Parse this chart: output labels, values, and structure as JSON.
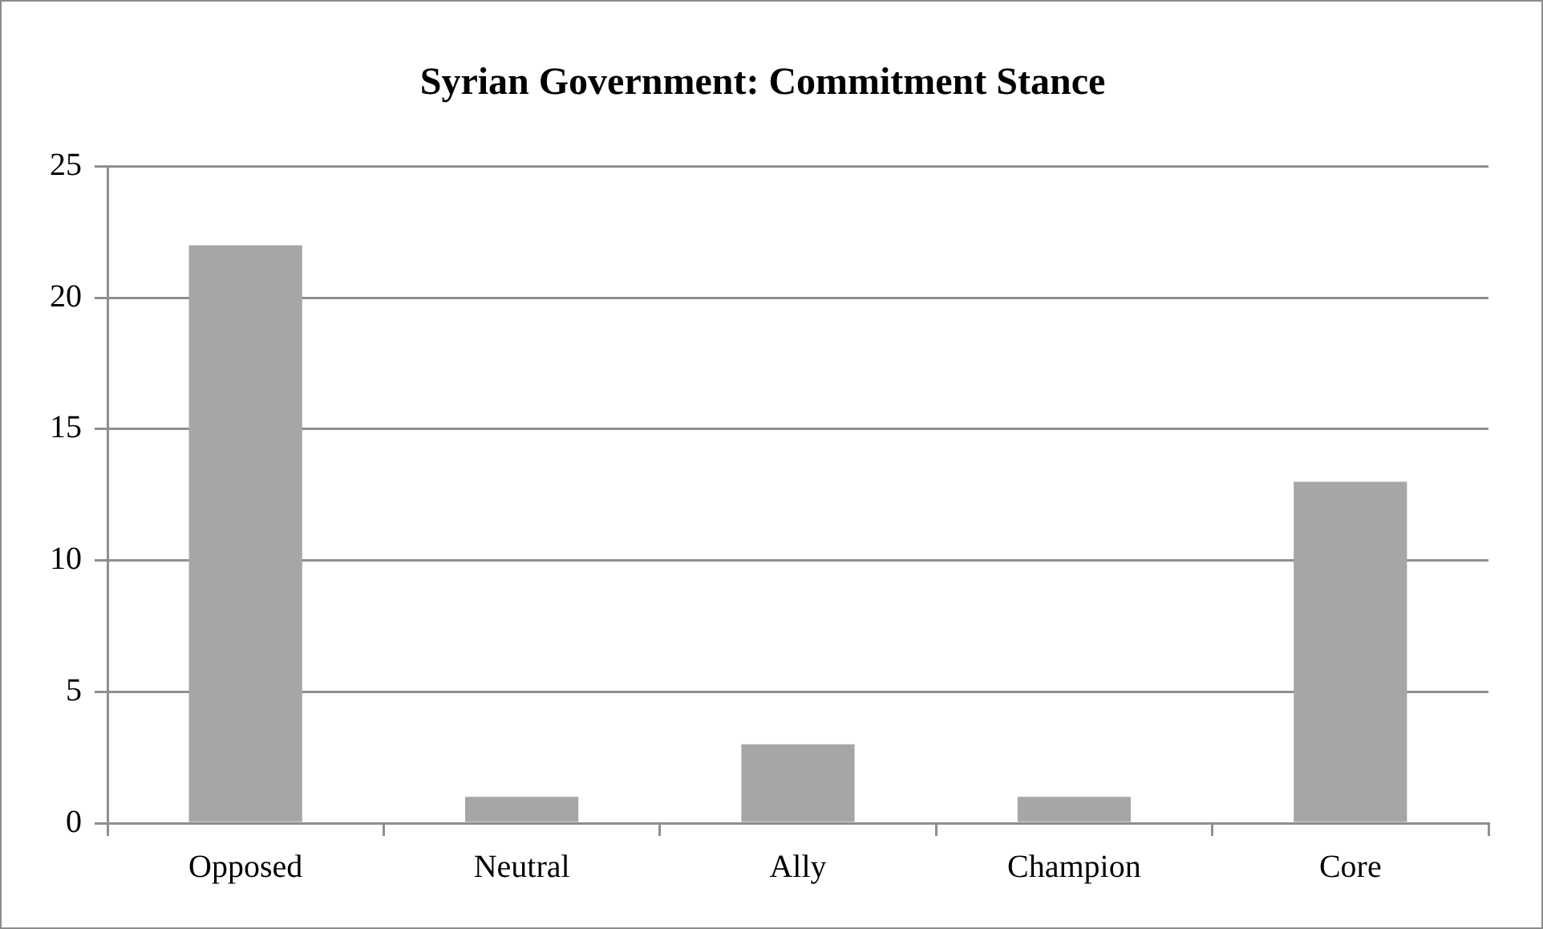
{
  "chart_data": {
    "type": "bar",
    "title": "Syrian Government: Commitment Stance",
    "categories": [
      "Opposed",
      "Neutral",
      "Ally",
      "Champion",
      "Core"
    ],
    "values": [
      22,
      1,
      3,
      1,
      13
    ],
    "color": "#a6a6a6",
    "ylim": [
      0,
      25
    ],
    "yticks": [
      0,
      5,
      10,
      15,
      20,
      25
    ],
    "grid": "y"
  }
}
